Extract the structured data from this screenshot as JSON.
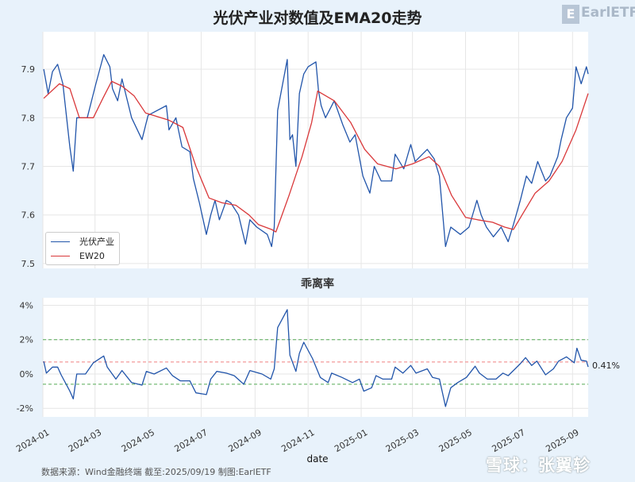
{
  "title": "光伏产业对数值及EMA20走势",
  "logo_text": "EarlETF",
  "footer": "数据来源：Wind金融终端 截至:2025/09/19 制图:EarlETF",
  "watermark": "雪球：张翼轸",
  "colors": {
    "price": "#2255aa",
    "ema": "#d9383a",
    "band": "#55aa55",
    "mean": "#f08080",
    "background": "#e8f2fb"
  },
  "chart_data": [
    {
      "type": "line",
      "title": "光伏产业对数值及EMA20走势",
      "ylim": [
        7.49,
        7.977
      ],
      "yticks": [
        "7.5",
        "7.6",
        "7.7",
        "7.8",
        "7.9"
      ],
      "xlim": [
        "2024-01-01",
        "2025-09-19"
      ],
      "xticks": [
        "2024-01",
        "2024-03",
        "2024-05",
        "2024-07",
        "2024-09",
        "2024-11",
        "2025-01",
        "2025-03",
        "2025-05",
        "2025-07",
        "2025-09"
      ],
      "grid": true,
      "legend": "lower-left",
      "series": [
        {
          "name": "光伏产业",
          "points": [
            [
              "2024-01-02",
              7.9
            ],
            [
              "2024-01-07",
              7.85
            ],
            [
              "2024-01-12",
              7.895
            ],
            [
              "2024-01-18",
              7.91
            ],
            [
              "2024-01-24",
              7.87
            ],
            [
              "2024-02-01",
              7.74
            ],
            [
              "2024-02-05",
              7.69
            ],
            [
              "2024-02-09",
              7.8
            ],
            [
              "2024-02-21",
              7.8
            ],
            [
              "2024-03-02",
              7.87
            ],
            [
              "2024-03-11",
              7.93
            ],
            [
              "2024-03-18",
              7.905
            ],
            [
              "2024-03-21",
              7.86
            ],
            [
              "2024-03-27",
              7.835
            ],
            [
              "2024-04-01",
              7.88
            ],
            [
              "2024-04-12",
              7.8
            ],
            [
              "2024-04-24",
              7.755
            ],
            [
              "2024-05-01",
              7.805
            ],
            [
              "2024-05-22",
              7.825
            ],
            [
              "2024-05-25",
              7.775
            ],
            [
              "2024-06-02",
              7.8
            ],
            [
              "2024-06-09",
              7.74
            ],
            [
              "2024-06-18",
              7.73
            ],
            [
              "2024-06-22",
              7.675
            ],
            [
              "2024-06-29",
              7.625
            ],
            [
              "2024-07-07",
              7.56
            ],
            [
              "2024-07-12",
              7.6
            ],
            [
              "2024-07-17",
              7.63
            ],
            [
              "2024-07-22",
              7.59
            ],
            [
              "2024-07-30",
              7.63
            ],
            [
              "2024-08-04",
              7.625
            ],
            [
              "2024-08-13",
              7.6
            ],
            [
              "2024-08-21",
              7.54
            ],
            [
              "2024-08-26",
              7.59
            ],
            [
              "2024-09-03",
              7.575
            ],
            [
              "2024-09-15",
              7.56
            ],
            [
              "2024-09-20",
              7.535
            ],
            [
              "2024-09-23",
              7.575
            ],
            [
              "2024-09-27",
              7.815
            ],
            [
              "2024-10-08",
              7.92
            ],
            [
              "2024-10-11",
              7.755
            ],
            [
              "2024-10-14",
              7.765
            ],
            [
              "2024-10-18",
              7.7
            ],
            [
              "2024-10-22",
              7.85
            ],
            [
              "2024-10-27",
              7.89
            ],
            [
              "2024-11-01",
              7.905
            ],
            [
              "2024-11-10",
              7.915
            ],
            [
              "2024-11-13",
              7.855
            ],
            [
              "2024-11-16",
              7.825
            ],
            [
              "2024-11-21",
              7.8
            ],
            [
              "2024-12-01",
              7.835
            ],
            [
              "2024-12-11",
              7.785
            ],
            [
              "2024-12-19",
              7.75
            ],
            [
              "2024-12-25",
              7.765
            ],
            [
              "2025-01-03",
              7.68
            ],
            [
              "2025-01-11",
              7.645
            ],
            [
              "2025-01-16",
              7.7
            ],
            [
              "2025-01-24",
              7.67
            ],
            [
              "2025-02-05",
              7.67
            ],
            [
              "2025-02-09",
              7.725
            ],
            [
              "2025-02-19",
              7.695
            ],
            [
              "2025-02-27",
              7.745
            ],
            [
              "2025-03-04",
              7.71
            ],
            [
              "2025-03-18",
              7.735
            ],
            [
              "2025-03-26",
              7.715
            ],
            [
              "2025-04-01",
              7.68
            ],
            [
              "2025-04-08",
              7.535
            ],
            [
              "2025-04-14",
              7.575
            ],
            [
              "2025-04-25",
              7.56
            ],
            [
              "2025-05-05",
              7.575
            ],
            [
              "2025-05-14",
              7.63
            ],
            [
              "2025-05-19",
              7.6
            ],
            [
              "2025-05-25",
              7.575
            ],
            [
              "2025-06-02",
              7.555
            ],
            [
              "2025-06-11",
              7.575
            ],
            [
              "2025-06-19",
              7.545
            ],
            [
              "2025-06-25",
              7.58
            ],
            [
              "2025-07-03",
              7.63
            ],
            [
              "2025-07-10",
              7.68
            ],
            [
              "2025-07-16",
              7.665
            ],
            [
              "2025-07-23",
              7.71
            ],
            [
              "2025-08-01",
              7.67
            ],
            [
              "2025-08-06",
              7.68
            ],
            [
              "2025-08-15",
              7.72
            ],
            [
              "2025-08-19",
              7.755
            ],
            [
              "2025-08-25",
              7.8
            ],
            [
              "2025-09-01",
              7.82
            ],
            [
              "2025-09-05",
              7.905
            ],
            [
              "2025-09-11",
              7.87
            ],
            [
              "2025-09-17",
              7.905
            ],
            [
              "2025-09-19",
              7.89
            ]
          ]
        },
        {
          "name": "EW20",
          "points": [
            [
              "2024-01-02",
              7.84
            ],
            [
              "2024-01-20",
              7.87
            ],
            [
              "2024-02-01",
              7.86
            ],
            [
              "2024-02-12",
              7.8
            ],
            [
              "2024-02-28",
              7.8
            ],
            [
              "2024-03-10",
              7.84
            ],
            [
              "2024-03-20",
              7.875
            ],
            [
              "2024-04-01",
              7.865
            ],
            [
              "2024-04-15",
              7.845
            ],
            [
              "2024-04-28",
              7.81
            ],
            [
              "2024-05-25",
              7.795
            ],
            [
              "2024-06-10",
              7.78
            ],
            [
              "2024-06-25",
              7.7
            ],
            [
              "2024-07-10",
              7.635
            ],
            [
              "2024-07-25",
              7.625
            ],
            [
              "2024-08-10",
              7.62
            ],
            [
              "2024-08-25",
              7.6
            ],
            [
              "2024-09-05",
              7.58
            ],
            [
              "2024-09-20",
              7.57
            ],
            [
              "2024-09-25",
              7.565
            ],
            [
              "2024-10-10",
              7.64
            ],
            [
              "2024-10-25",
              7.72
            ],
            [
              "2024-11-05",
              7.79
            ],
            [
              "2024-11-12",
              7.855
            ],
            [
              "2024-12-01",
              7.835
            ],
            [
              "2024-12-20",
              7.79
            ],
            [
              "2025-01-05",
              7.735
            ],
            [
              "2025-01-20",
              7.705
            ],
            [
              "2025-02-10",
              7.695
            ],
            [
              "2025-03-01",
              7.705
            ],
            [
              "2025-03-20",
              7.72
            ],
            [
              "2025-04-01",
              7.7
            ],
            [
              "2025-04-15",
              7.64
            ],
            [
              "2025-05-01",
              7.595
            ],
            [
              "2025-05-15",
              7.59
            ],
            [
              "2025-06-01",
              7.585
            ],
            [
              "2025-06-15",
              7.575
            ],
            [
              "2025-06-25",
              7.57
            ],
            [
              "2025-07-05",
              7.6
            ],
            [
              "2025-07-20",
              7.645
            ],
            [
              "2025-08-05",
              7.67
            ],
            [
              "2025-08-20",
              7.71
            ],
            [
              "2025-09-05",
              7.775
            ],
            [
              "2025-09-19",
              7.85
            ]
          ]
        }
      ]
    },
    {
      "type": "line",
      "title": "乖离率",
      "xlabel": "date",
      "ylim": [
        -2.5,
        4.44
      ],
      "yticks": [
        "-2%",
        "0%",
        "2%",
        "4%"
      ],
      "ytick_values": [
        -2,
        0,
        2,
        4
      ],
      "grid": true,
      "reference_lines": [
        {
          "value": 2.0,
          "color": "#55aa55",
          "style": "dashed"
        },
        {
          "value": 0.7,
          "color": "#f08080",
          "style": "dashed"
        },
        {
          "value": -0.6,
          "color": "#55aa55",
          "style": "dashed"
        }
      ],
      "last_value_label": "0.41%",
      "series": [
        {
          "points": [
            [
              "2024-01-02",
              0.74
            ],
            [
              "2024-01-05",
              0.05
            ],
            [
              "2024-01-12",
              0.4
            ],
            [
              "2024-01-18",
              0.4
            ],
            [
              "2024-01-22",
              -0.05
            ],
            [
              "2024-02-01",
              -1.0
            ],
            [
              "2024-02-05",
              -1.45
            ],
            [
              "2024-02-09",
              0
            ],
            [
              "2024-02-19",
              0
            ],
            [
              "2024-02-28",
              0.65
            ],
            [
              "2024-03-11",
              1.05
            ],
            [
              "2024-03-15",
              0.4
            ],
            [
              "2024-03-25",
              -0.3
            ],
            [
              "2024-04-01",
              0.2
            ],
            [
              "2024-04-12",
              -0.5
            ],
            [
              "2024-04-24",
              -0.65
            ],
            [
              "2024-04-29",
              0.15
            ],
            [
              "2024-05-08",
              0
            ],
            [
              "2024-05-22",
              0.35
            ],
            [
              "2024-05-29",
              -0.1
            ],
            [
              "2024-06-07",
              -0.4
            ],
            [
              "2024-06-18",
              -0.4
            ],
            [
              "2024-06-25",
              -1.1
            ],
            [
              "2024-07-07",
              -1.2
            ],
            [
              "2024-07-12",
              -0.3
            ],
            [
              "2024-07-19",
              0.15
            ],
            [
              "2024-07-30",
              0.05
            ],
            [
              "2024-08-08",
              -0.1
            ],
            [
              "2024-08-19",
              -0.6
            ],
            [
              "2024-08-26",
              0.2
            ],
            [
              "2024-09-09",
              0
            ],
            [
              "2024-09-19",
              -0.3
            ],
            [
              "2024-09-23",
              0.3
            ],
            [
              "2024-09-27",
              2.7
            ],
            [
              "2024-10-08",
              3.75
            ],
            [
              "2024-10-11",
              1.1
            ],
            [
              "2024-10-18",
              0.15
            ],
            [
              "2024-10-22",
              1.2
            ],
            [
              "2024-10-27",
              1.85
            ],
            [
              "2024-11-06",
              0.9
            ],
            [
              "2024-11-15",
              -0.2
            ],
            [
              "2024-11-24",
              -0.5
            ],
            [
              "2024-11-28",
              0.05
            ],
            [
              "2024-12-10",
              -0.2
            ],
            [
              "2024-12-22",
              -0.5
            ],
            [
              "2024-12-30",
              -0.3
            ],
            [
              "2025-01-04",
              -1.0
            ],
            [
              "2025-01-13",
              -0.8
            ],
            [
              "2025-01-18",
              -0.1
            ],
            [
              "2025-01-26",
              -0.3
            ],
            [
              "2025-02-05",
              -0.3
            ],
            [
              "2025-02-09",
              0.4
            ],
            [
              "2025-02-18",
              0.05
            ],
            [
              "2025-02-27",
              0.5
            ],
            [
              "2025-03-05",
              0.05
            ],
            [
              "2025-03-18",
              0.3
            ],
            [
              "2025-03-24",
              -0.2
            ],
            [
              "2025-04-01",
              -0.3
            ],
            [
              "2025-04-08",
              -1.9
            ],
            [
              "2025-04-14",
              -0.8
            ],
            [
              "2025-04-22",
              -0.5
            ],
            [
              "2025-05-02",
              -0.2
            ],
            [
              "2025-05-12",
              0.45
            ],
            [
              "2025-05-17",
              0.05
            ],
            [
              "2025-05-26",
              -0.3
            ],
            [
              "2025-06-05",
              -0.3
            ],
            [
              "2025-06-13",
              0.05
            ],
            [
              "2025-06-19",
              -0.1
            ],
            [
              "2025-06-27",
              0.3
            ],
            [
              "2025-07-03",
              0.6
            ],
            [
              "2025-07-09",
              0.95
            ],
            [
              "2025-07-16",
              0.5
            ],
            [
              "2025-07-22",
              0.75
            ],
            [
              "2025-08-01",
              -0.05
            ],
            [
              "2025-08-10",
              0.3
            ],
            [
              "2025-08-16",
              0.75
            ],
            [
              "2025-08-25",
              1.0
            ],
            [
              "2025-09-03",
              0.65
            ],
            [
              "2025-09-06",
              1.5
            ],
            [
              "2025-09-11",
              0.8
            ],
            [
              "2025-09-17",
              0.75
            ],
            [
              "2025-09-19",
              0.41
            ]
          ]
        }
      ]
    }
  ]
}
